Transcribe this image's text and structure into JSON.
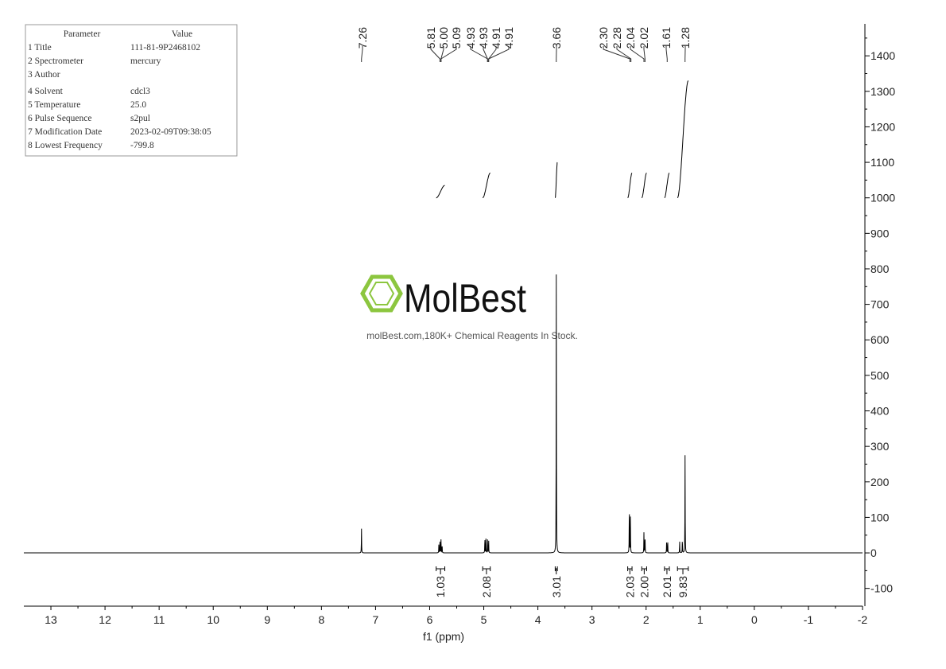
{
  "parameter_table": {
    "headers": [
      "Parameter",
      "Value"
    ],
    "rows": [
      [
        "1 Title",
        "111-81-9P2468102"
      ],
      [
        "2 Spectrometer",
        "mercury"
      ],
      [
        "3 Author",
        ""
      ],
      [
        "4 Solvent",
        "cdcl3"
      ],
      [
        "5 Temperature",
        "25.0"
      ],
      [
        "6 Pulse Sequence",
        "s2pul"
      ],
      [
        "7 Modification Date",
        "2023-02-09T09:38:05"
      ],
      [
        "8 Lowest Frequency",
        "-799.8"
      ]
    ]
  },
  "watermark": {
    "logo": "MolBest",
    "text": "molBest.com,180K+ Chemical Reagents In Stock.",
    "color": "#8cc63f"
  },
  "chart_data": {
    "type": "line",
    "title": "",
    "xlabel": "f1 (ppm)",
    "ylabel": "",
    "xlim": [
      13.5,
      -2
    ],
    "ylim": [
      -150,
      1490
    ],
    "x_ticks": [
      13,
      12,
      11,
      10,
      9,
      8,
      7,
      6,
      5,
      4,
      3,
      2,
      1,
      0,
      -1,
      -2
    ],
    "y_ticks": [
      -100,
      0,
      100,
      200,
      300,
      400,
      500,
      600,
      700,
      800,
      900,
      1000,
      1100,
      1200,
      1300,
      1400
    ],
    "grid": false,
    "line_color": "#000000",
    "peaks": [
      {
        "ppm": 7.26,
        "height": 70
      },
      {
        "ppm": 5.83,
        "height": 25
      },
      {
        "ppm": 5.81,
        "height": 38
      },
      {
        "ppm": 5.79,
        "height": 38
      },
      {
        "ppm": 5.77,
        "height": 25
      },
      {
        "ppm": 4.98,
        "height": 45
      },
      {
        "ppm": 4.96,
        "height": 40
      },
      {
        "ppm": 4.93,
        "height": 42
      },
      {
        "ppm": 4.91,
        "height": 40
      },
      {
        "ppm": 3.66,
        "height": 785
      },
      {
        "ppm": 2.31,
        "height": 150
      },
      {
        "ppm": 2.29,
        "height": 100
      },
      {
        "ppm": 2.04,
        "height": 58
      },
      {
        "ppm": 2.02,
        "height": 55
      },
      {
        "ppm": 1.62,
        "height": 40
      },
      {
        "ppm": 1.6,
        "height": 30
      },
      {
        "ppm": 1.38,
        "height": 35
      },
      {
        "ppm": 1.33,
        "height": 40
      },
      {
        "ppm": 1.28,
        "height": 275
      }
    ],
    "peak_labels": [
      "7.26",
      "5.81",
      "5.00",
      "5.09",
      "4.93",
      "4.93",
      "4.91",
      "4.91",
      "3.66",
      "2.30",
      "2.28",
      "2.04",
      "2.02",
      "1.61",
      "1.28"
    ],
    "integrals": [
      {
        "from": 5.88,
        "to": 5.72,
        "value": "1.03",
        "start": 1000,
        "end": 1035
      },
      {
        "from": 5.02,
        "to": 4.88,
        "value": "2.08",
        "start": 1000,
        "end": 1070
      },
      {
        "from": 3.68,
        "to": 3.64,
        "value": "3.01",
        "start": 1000,
        "end": 1100
      },
      {
        "from": 2.34,
        "to": 2.26,
        "value": "2.03",
        "start": 1000,
        "end": 1070
      },
      {
        "from": 2.08,
        "to": 1.99,
        "value": "2.00",
        "start": 1000,
        "end": 1070
      },
      {
        "from": 1.66,
        "to": 1.57,
        "value": "2.01",
        "start": 1000,
        "end": 1070
      },
      {
        "from": 1.42,
        "to": 1.22,
        "value": "9.83",
        "start": 1000,
        "end": 1330
      }
    ]
  }
}
